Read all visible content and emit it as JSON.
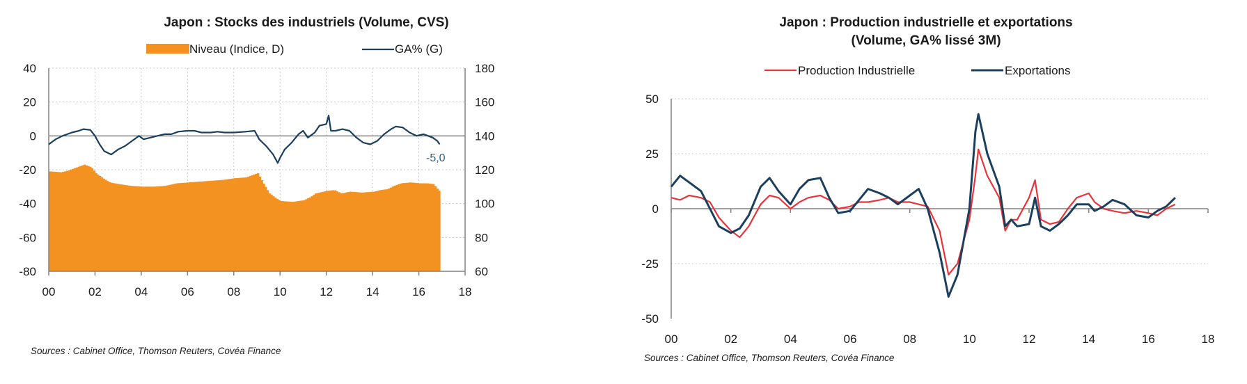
{
  "chart_data": [
    {
      "type": "bar+line",
      "title": "Japon : Stocks des industriels (Volume, CVS)",
      "legend": [
        {
          "label": "Niveau (Indice, D)",
          "color": "#F39220",
          "kind": "bar"
        },
        {
          "label": "GA% (G)",
          "color": "#1B3F5C",
          "kind": "line"
        }
      ],
      "x_ticks": [
        "00",
        "02",
        "04",
        "06",
        "08",
        "10",
        "12",
        "14",
        "16",
        "18"
      ],
      "x_range": [
        2000,
        2018
      ],
      "y_left": {
        "range": [
          -80,
          40
        ],
        "ticks": [
          "40",
          "20",
          "0",
          "-20",
          "-40",
          "-60",
          "-80"
        ]
      },
      "y_right": {
        "range": [
          60,
          180
        ],
        "ticks": [
          "180",
          "160",
          "140",
          "120",
          "100",
          "80",
          "60"
        ]
      },
      "annotation": "-5,0",
      "series": [
        {
          "name": "Niveau (Indice, D)",
          "axis": "right",
          "points": [
            [
              2000.0,
              119
            ],
            [
              2000.5,
              118.5
            ],
            [
              2000.8,
              119.5
            ],
            [
              2001.0,
              120.5
            ],
            [
              2001.3,
              122
            ],
            [
              2001.5,
              123
            ],
            [
              2001.8,
              121.5
            ],
            [
              2002.0,
              118
            ],
            [
              2002.3,
              115
            ],
            [
              2002.6,
              112.5
            ],
            [
              2003.0,
              111.5
            ],
            [
              2003.5,
              110.5
            ],
            [
              2004.0,
              110
            ],
            [
              2004.5,
              110
            ],
            [
              2005.0,
              110.5
            ],
            [
              2005.5,
              112
            ],
            [
              2006.0,
              112.5
            ],
            [
              2006.5,
              113
            ],
            [
              2007.0,
              113.5
            ],
            [
              2007.5,
              114
            ],
            [
              2008.0,
              115
            ],
            [
              2008.5,
              115.5
            ],
            [
              2008.8,
              117
            ],
            [
              2009.0,
              118
            ],
            [
              2009.2,
              113
            ],
            [
              2009.5,
              106
            ],
            [
              2009.8,
              103
            ],
            [
              2010.0,
              101.5
            ],
            [
              2010.5,
              101
            ],
            [
              2011.0,
              102
            ],
            [
              2011.3,
              104
            ],
            [
              2011.5,
              106
            ],
            [
              2012.0,
              107.5
            ],
            [
              2012.3,
              108
            ],
            [
              2012.6,
              106
            ],
            [
              2013.0,
              107
            ],
            [
              2013.5,
              106.5
            ],
            [
              2014.0,
              107
            ],
            [
              2014.3,
              108
            ],
            [
              2014.6,
              108.5
            ],
            [
              2014.9,
              110.5
            ],
            [
              2015.2,
              112
            ],
            [
              2015.6,
              112.5
            ],
            [
              2016.0,
              112
            ],
            [
              2016.3,
              112
            ],
            [
              2016.6,
              111.5
            ],
            [
              2016.8,
              108
            ],
            [
              2016.9,
              107
            ]
          ]
        },
        {
          "name": "GA% (G)",
          "axis": "left",
          "points": [
            [
              2000.0,
              -5
            ],
            [
              2000.3,
              -2
            ],
            [
              2000.6,
              0
            ],
            [
              2000.8,
              1
            ],
            [
              2001.0,
              2
            ],
            [
              2001.3,
              3
            ],
            [
              2001.5,
              4
            ],
            [
              2001.8,
              3.5
            ],
            [
              2002.0,
              0
            ],
            [
              2002.2,
              -5
            ],
            [
              2002.4,
              -9
            ],
            [
              2002.7,
              -11
            ],
            [
              2003.0,
              -8
            ],
            [
              2003.3,
              -6
            ],
            [
              2003.6,
              -3
            ],
            [
              2003.9,
              0
            ],
            [
              2004.1,
              -2
            ],
            [
              2004.4,
              -1
            ],
            [
              2004.7,
              0
            ],
            [
              2005.0,
              1
            ],
            [
              2005.3,
              1
            ],
            [
              2005.6,
              2.5
            ],
            [
              2006.0,
              3
            ],
            [
              2006.3,
              3
            ],
            [
              2006.6,
              2
            ],
            [
              2007.0,
              2
            ],
            [
              2007.3,
              2.5
            ],
            [
              2007.6,
              2
            ],
            [
              2008.0,
              2
            ],
            [
              2008.5,
              2.5
            ],
            [
              2008.9,
              3
            ],
            [
              2009.1,
              -2
            ],
            [
              2009.4,
              -6
            ],
            [
              2009.7,
              -11
            ],
            [
              2009.9,
              -16
            ],
            [
              2010.0,
              -13
            ],
            [
              2010.2,
              -8
            ],
            [
              2010.5,
              -4
            ],
            [
              2010.8,
              1
            ],
            [
              2011.0,
              3
            ],
            [
              2011.2,
              -1
            ],
            [
              2011.5,
              2
            ],
            [
              2011.7,
              6
            ],
            [
              2012.0,
              7
            ],
            [
              2012.1,
              12
            ],
            [
              2012.2,
              3
            ],
            [
              2012.4,
              3
            ],
            [
              2012.7,
              4
            ],
            [
              2013.0,
              3
            ],
            [
              2013.3,
              -1
            ],
            [
              2013.6,
              -4
            ],
            [
              2013.9,
              -5
            ],
            [
              2014.2,
              -3
            ],
            [
              2014.5,
              1
            ],
            [
              2014.8,
              4
            ],
            [
              2015.0,
              5.5
            ],
            [
              2015.3,
              5
            ],
            [
              2015.6,
              2
            ],
            [
              2015.9,
              0
            ],
            [
              2016.2,
              1
            ],
            [
              2016.4,
              0
            ],
            [
              2016.6,
              -1
            ],
            [
              2016.8,
              -3
            ],
            [
              2016.9,
              -5
            ]
          ]
        }
      ],
      "source": "Sources : Cabinet Office, Thomson Reuters, Covéa Finance"
    },
    {
      "type": "line",
      "title": [
        "Japon : Production industrielle et exportations",
        "(Volume, GA% lissé 3M)"
      ],
      "legend": [
        {
          "label": "Production Industrielle",
          "color": "#E8343B"
        },
        {
          "label": "Exportations",
          "color": "#1B3F5C"
        }
      ],
      "x_ticks": [
        "00",
        "02",
        "04",
        "06",
        "08",
        "10",
        "12",
        "14",
        "16",
        "18"
      ],
      "x_range": [
        2000,
        2018
      ],
      "y_range": [
        -50,
        50
      ],
      "y_ticks": [
        "50",
        "25",
        "0",
        "-25",
        "-50"
      ],
      "series": [
        {
          "name": "Production Industrielle",
          "points": [
            [
              2000.0,
              5
            ],
            [
              2000.3,
              4
            ],
            [
              2000.6,
              6
            ],
            [
              2001.0,
              5
            ],
            [
              2001.3,
              3
            ],
            [
              2001.6,
              -4
            ],
            [
              2002.0,
              -10
            ],
            [
              2002.3,
              -13
            ],
            [
              2002.6,
              -8
            ],
            [
              2003.0,
              2
            ],
            [
              2003.3,
              6
            ],
            [
              2003.6,
              5
            ],
            [
              2004.0,
              0
            ],
            [
              2004.3,
              3
            ],
            [
              2004.6,
              5
            ],
            [
              2005.0,
              6
            ],
            [
              2005.3,
              4
            ],
            [
              2005.6,
              0
            ],
            [
              2006.0,
              1
            ],
            [
              2006.3,
              3
            ],
            [
              2006.6,
              3
            ],
            [
              2007.0,
              4
            ],
            [
              2007.3,
              5
            ],
            [
              2007.6,
              3
            ],
            [
              2008.0,
              3
            ],
            [
              2008.3,
              2
            ],
            [
              2008.6,
              1
            ],
            [
              2009.0,
              -10
            ],
            [
              2009.3,
              -30
            ],
            [
              2009.6,
              -25
            ],
            [
              2010.0,
              -5
            ],
            [
              2010.2,
              15
            ],
            [
              2010.3,
              27
            ],
            [
              2010.6,
              15
            ],
            [
              2011.0,
              5
            ],
            [
              2011.2,
              -10
            ],
            [
              2011.4,
              -5
            ],
            [
              2011.6,
              -5
            ],
            [
              2012.0,
              5
            ],
            [
              2012.2,
              13
            ],
            [
              2012.4,
              -5
            ],
            [
              2012.7,
              -7
            ],
            [
              2013.0,
              -6
            ],
            [
              2013.3,
              0
            ],
            [
              2013.6,
              5
            ],
            [
              2014.0,
              7
            ],
            [
              2014.2,
              3
            ],
            [
              2014.5,
              0
            ],
            [
              2014.8,
              -1
            ],
            [
              2015.2,
              -2
            ],
            [
              2015.6,
              -1
            ],
            [
              2016.0,
              -2
            ],
            [
              2016.3,
              -3
            ],
            [
              2016.6,
              0
            ],
            [
              2016.9,
              2
            ]
          ]
        },
        {
          "name": "Exportations",
          "points": [
            [
              2000.0,
              10
            ],
            [
              2000.3,
              15
            ],
            [
              2000.6,
              12
            ],
            [
              2001.0,
              8
            ],
            [
              2001.3,
              0
            ],
            [
              2001.6,
              -8
            ],
            [
              2002.0,
              -11
            ],
            [
              2002.3,
              -9
            ],
            [
              2002.6,
              -3
            ],
            [
              2003.0,
              10
            ],
            [
              2003.3,
              14
            ],
            [
              2003.6,
              8
            ],
            [
              2004.0,
              2
            ],
            [
              2004.3,
              9
            ],
            [
              2004.6,
              13
            ],
            [
              2005.0,
              14
            ],
            [
              2005.3,
              5
            ],
            [
              2005.6,
              -2
            ],
            [
              2006.0,
              -1
            ],
            [
              2006.3,
              4
            ],
            [
              2006.6,
              9
            ],
            [
              2007.0,
              7
            ],
            [
              2007.3,
              5
            ],
            [
              2007.6,
              2
            ],
            [
              2008.0,
              6
            ],
            [
              2008.3,
              9
            ],
            [
              2008.6,
              0
            ],
            [
              2009.0,
              -20
            ],
            [
              2009.3,
              -40
            ],
            [
              2009.6,
              -30
            ],
            [
              2010.0,
              0
            ],
            [
              2010.2,
              35
            ],
            [
              2010.3,
              43
            ],
            [
              2010.6,
              25
            ],
            [
              2011.0,
              10
            ],
            [
              2011.2,
              -8
            ],
            [
              2011.4,
              -5
            ],
            [
              2011.6,
              -8
            ],
            [
              2012.0,
              -7
            ],
            [
              2012.2,
              5
            ],
            [
              2012.4,
              -8
            ],
            [
              2012.7,
              -10
            ],
            [
              2013.0,
              -7
            ],
            [
              2013.3,
              -3
            ],
            [
              2013.6,
              2
            ],
            [
              2014.0,
              2
            ],
            [
              2014.2,
              -1
            ],
            [
              2014.5,
              1
            ],
            [
              2014.8,
              4
            ],
            [
              2015.2,
              2
            ],
            [
              2015.6,
              -3
            ],
            [
              2016.0,
              -4
            ],
            [
              2016.3,
              -1
            ],
            [
              2016.6,
              1
            ],
            [
              2016.9,
              5
            ]
          ]
        }
      ],
      "source": "Sources : Cabinet Office, Thomson Reuters, Covéa Finance"
    }
  ]
}
